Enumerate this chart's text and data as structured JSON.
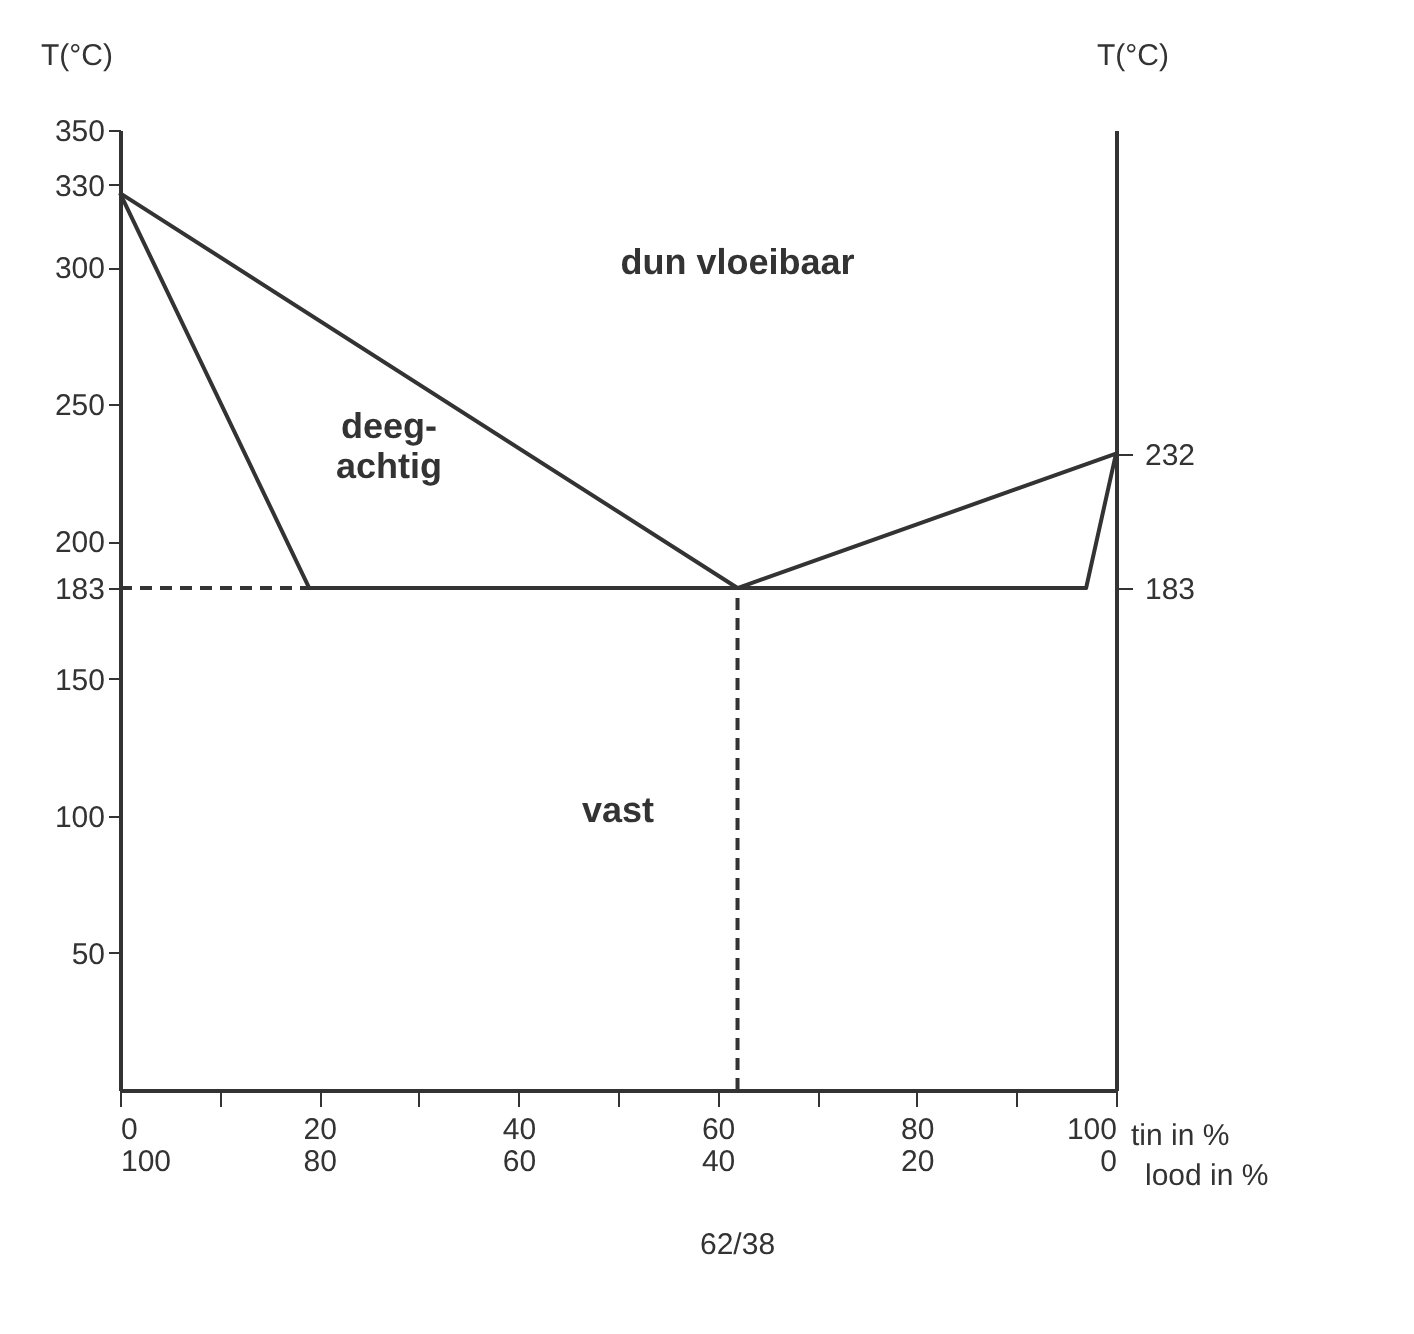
{
  "chart_data": {
    "type": "line",
    "ylabel": "T(°C)",
    "y2label": "T(°C)",
    "xlabel": "tin in %",
    "x2label": "lood in %",
    "xlim": [
      0,
      100
    ],
    "xticks": [
      0,
      {
        "value": 10,
        "label": null
      },
      20,
      {
        "value": 30,
        "label": null
      },
      40,
      {
        "value": 50,
        "label": null
      },
      60,
      {
        "value": 70,
        "label": null
      },
      80,
      {
        "value": 90,
        "label": null
      },
      100
    ],
    "x2lim": [
      100,
      0
    ],
    "x2ticks": [
      100,
      80,
      60,
      40,
      20,
      0
    ],
    "ylim": [
      0,
      350
    ],
    "yticks": [
      50,
      100,
      150,
      183,
      200,
      250,
      300,
      330,
      350
    ],
    "y2lim": [
      0,
      350
    ],
    "y2ticks": [
      183,
      232
    ],
    "grid": false,
    "marker": "none",
    "series": [
      {
        "color": "#333333",
        "x": [
          0,
          62,
          100
        ],
        "values": [
          327,
          183,
          232
        ],
        "line_style": "solid"
      },
      {
        "color": "#333333",
        "x": [
          0,
          19,
          97,
          100
        ],
        "values": [
          327,
          183,
          183,
          232
        ],
        "line_style": "solid"
      },
      {
        "color": "#333333",
        "x": [
          0,
          19
        ],
        "values": [
          183,
          183
        ],
        "line_style": "dashed"
      },
      {
        "color": "#333333",
        "x": [
          62,
          62
        ],
        "values": [
          0,
          183
        ],
        "line_style": "dashed"
      }
    ],
    "annotations": [
      "dun vloeibaar",
      "deeg-\nachtig",
      "vast",
      "62/38"
    ]
  }
}
